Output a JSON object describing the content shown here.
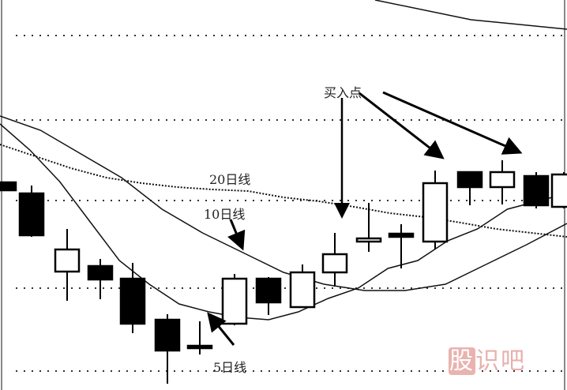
{
  "chart_data": {
    "type": "candlestick",
    "title": "",
    "xlabel": "",
    "ylabel": "",
    "grid": true,
    "ylim": [
      0,
      50
    ],
    "candles": [
      {
        "open": 26.9,
        "close": 25.9,
        "high": 26.9,
        "low": 25.9
      },
      {
        "open": 25.5,
        "close": 20.2,
        "high": 26.5,
        "low": 20.0
      },
      {
        "open": 15.6,
        "close": 18.4,
        "high": 21.0,
        "low": 11.9
      },
      {
        "open": 16.3,
        "close": 14.6,
        "high": 17.2,
        "low": 12.1
      },
      {
        "open": 14.7,
        "close": 9.0,
        "high": 16.7,
        "low": 7.8
      },
      {
        "open": 9.5,
        "close": 5.6,
        "high": 10.2,
        "low": 1.4
      },
      {
        "open": 6.2,
        "close": 5.9,
        "high": 9.3,
        "low": 5.1
      },
      {
        "open": 9.0,
        "close": 14.7,
        "high": 15.3,
        "low": 8.8
      },
      {
        "open": 14.7,
        "close": 11.7,
        "high": 14.9,
        "low": 10.1
      },
      {
        "open": 11.1,
        "close": 15.5,
        "high": 16.5,
        "low": 11.0
      },
      {
        "open": 15.5,
        "close": 17.8,
        "high": 20.5,
        "low": 13.7
      },
      {
        "open": 19.4,
        "close": 19.8,
        "high": 24.3,
        "low": 18.1
      },
      {
        "open": 20.4,
        "close": 20.0,
        "high": 21.6,
        "low": 16.0
      },
      {
        "open": 19.4,
        "close": 26.8,
        "high": 28.4,
        "low": 18.4
      },
      {
        "open": 28.2,
        "close": 26.3,
        "high": 28.2,
        "low": 24.0
      },
      {
        "open": 26.3,
        "close": 28.2,
        "high": 29.7,
        "low": 24.1
      },
      {
        "open": 27.7,
        "close": 24.0,
        "high": 28.2,
        "low": 23.6
      },
      {
        "open": 23.8,
        "close": 27.9,
        "high": 28.2,
        "low": 23.6
      }
    ],
    "moving_averages": [
      {
        "name": "5日线",
        "style": "solid",
        "values": [
          34.3,
          31.0,
          27.0,
          22.0,
          17.0,
          14.0,
          11.5,
          10.5,
          9.8,
          9.5,
          10.5,
          12.2,
          13.5,
          16.0,
          17.0,
          19.5,
          21.0,
          23.5,
          24.5,
          25.5
        ]
      },
      {
        "name": "10日线",
        "style": "solid",
        "values": [
          35.3,
          33.5,
          30.5,
          27.5,
          23.5,
          20.5,
          18.0,
          15.5,
          14.0,
          13.2,
          13.2,
          14.0,
          16.5,
          19.0,
          21.7
        ]
      },
      {
        "name": "20日线",
        "style": "dotted",
        "values": [
          31.7,
          30.2,
          28.7,
          27.5,
          26.8,
          26.3,
          26.0,
          25.8,
          25.0,
          24.5,
          23.8,
          23.0,
          22.5,
          21.8,
          21.0,
          20.5,
          20.0
        ]
      },
      {
        "name": "",
        "style": "solid",
        "values": [
          50.0,
          47.5,
          46.3
        ]
      }
    ],
    "gridlines": [
      45.5,
      34.8,
      24.6,
      13.5,
      3.0
    ],
    "annotations": [
      {
        "text": "20日线",
        "target": "20日线"
      },
      {
        "text": "10日线",
        "target": "10日线"
      },
      {
        "text": "5日线",
        "target": "5日线"
      },
      {
        "text": "买入点",
        "target": "buy points"
      }
    ],
    "colors": {
      "bear": "#000000",
      "bull": "#ffffff",
      "line": "#111111",
      "grid": "#333333"
    }
  },
  "watermark": {
    "text": "股识吧",
    "color": "#e7b0ad"
  }
}
